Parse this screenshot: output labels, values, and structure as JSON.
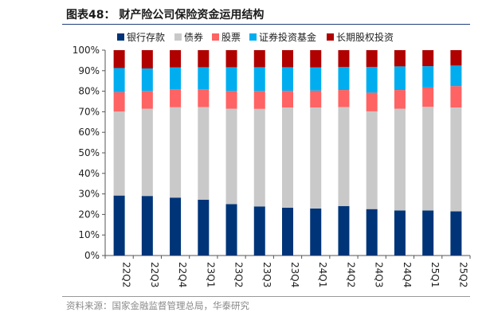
{
  "title": "图表48：  财产险公司保险资金运用结构",
  "source": "资料来源：国家金融监督管理总局，华泰研究",
  "chart_data": {
    "type": "bar",
    "stacked": true,
    "title": "财产险公司保险资金运用结构",
    "xlabel": "",
    "ylabel": "",
    "ylim": [
      0,
      100
    ],
    "yticks": [
      "0%",
      "10%",
      "20%",
      "30%",
      "40%",
      "50%",
      "60%",
      "70%",
      "80%",
      "90%",
      "100%"
    ],
    "legend_position": "top",
    "categories": [
      "22Q2",
      "22Q3",
      "22Q4",
      "23Q1",
      "23Q2",
      "23Q3",
      "23Q4",
      "24Q1",
      "24Q2",
      "24Q3",
      "24Q4",
      "25Q1",
      "25Q2"
    ],
    "series": [
      {
        "name": "银行存款",
        "color": "#003478",
        "values": [
          29.2,
          29.0,
          28.2,
          27.2,
          25.0,
          23.9,
          23.3,
          22.9,
          24.1,
          22.6,
          21.9,
          21.9,
          21.5
        ]
      },
      {
        "name": "债券",
        "color": "#c9c9c9",
        "values": [
          40.9,
          42.5,
          44.0,
          45.1,
          46.5,
          47.5,
          48.8,
          49.2,
          48.2,
          47.6,
          49.6,
          50.5,
          50.6
        ]
      },
      {
        "name": "股票",
        "color": "#ff6363",
        "values": [
          9.5,
          8.6,
          8.7,
          8.6,
          8.6,
          8.7,
          8.1,
          8.2,
          8.3,
          9.1,
          9.1,
          9.4,
          10.4
        ]
      },
      {
        "name": "证券投资基金",
        "color": "#00aeef",
        "values": [
          11.7,
          11.0,
          10.7,
          10.8,
          11.6,
          11.6,
          11.5,
          11.3,
          11.2,
          12.5,
          11.5,
          10.4,
          10.0
        ]
      },
      {
        "name": "长期股权投资",
        "color": "#b00000",
        "values": [
          8.7,
          8.9,
          8.4,
          8.3,
          8.3,
          8.3,
          8.3,
          8.4,
          8.2,
          8.2,
          7.9,
          7.8,
          7.5
        ]
      }
    ]
  }
}
